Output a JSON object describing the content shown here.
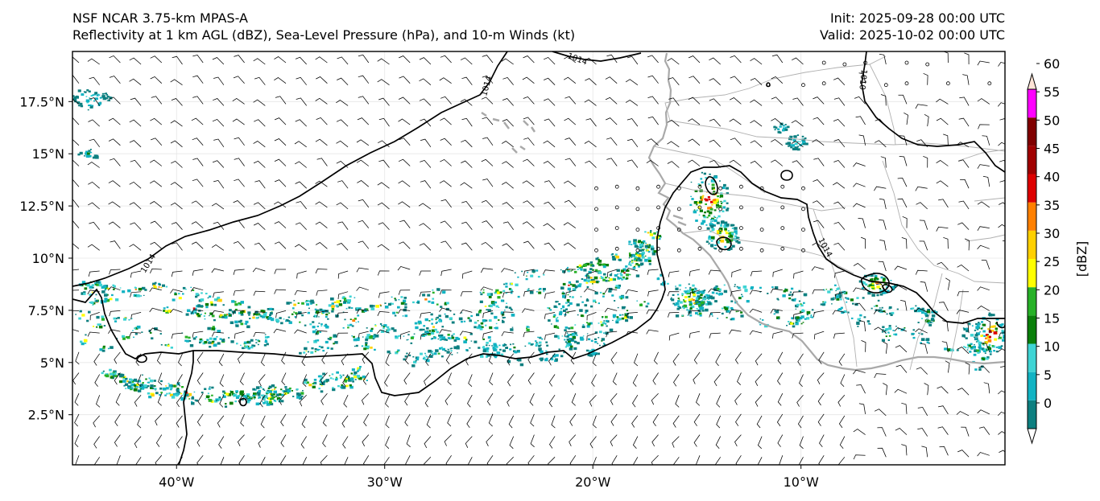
{
  "title": {
    "line1": "NSF NCAR 3.75-km MPAS-A",
    "line2": "Reflectivity at 1 km AGL (dBZ), Sea-Level Pressure (hPa), and 10-m Winds (kt)"
  },
  "times": {
    "init": "Init: 2025-09-28 00:00 UTC",
    "valid": "Valid: 2025-10-02 00:00 UTC"
  },
  "axes": {
    "lon_ticks": [
      {
        "value": -40,
        "label": "40°W"
      },
      {
        "value": -30,
        "label": "30°W"
      },
      {
        "value": -20,
        "label": "20°W"
      },
      {
        "value": -10,
        "label": "10°W"
      }
    ],
    "lat_ticks": [
      {
        "value": 2.5,
        "label": "2.5°N"
      },
      {
        "value": 5,
        "label": "5°N"
      },
      {
        "value": 7.5,
        "label": "7.5°N"
      },
      {
        "value": 10,
        "label": "10°N"
      },
      {
        "value": 12.5,
        "label": "12.5°N"
      },
      {
        "value": 15,
        "label": "15°N"
      },
      {
        "value": 17.5,
        "label": "17.5°N"
      }
    ],
    "lon_range": [
      -45.0,
      -0.2
    ],
    "lat_range": [
      0.1,
      19.9
    ]
  },
  "isobars": [
    {
      "label": "1014",
      "value": 1014
    },
    {
      "label": "1010",
      "value": 1010
    }
  ],
  "colorbar": {
    "unit_label": "[dBZ]",
    "ticks": [
      "0",
      "5",
      "10",
      "15",
      "20",
      "25",
      "30",
      "35",
      "40",
      "45",
      "50",
      "55",
      "60"
    ],
    "colors": [
      "#0d7f80",
      "#12b3c3",
      "#3fd4d4",
      "#0a7f0a",
      "#27b127",
      "#ffff00",
      "#ffd000",
      "#ff8000",
      "#dd0000",
      "#a00000",
      "#800000",
      "#ff00ff",
      "#ffe4d6"
    ],
    "below_color": "#ffffff",
    "above_color": "#ffe4d6"
  },
  "colors": {
    "coastline": "#a9a9a9",
    "isobar": "#000000",
    "gridline": "#e6e6e6"
  }
}
